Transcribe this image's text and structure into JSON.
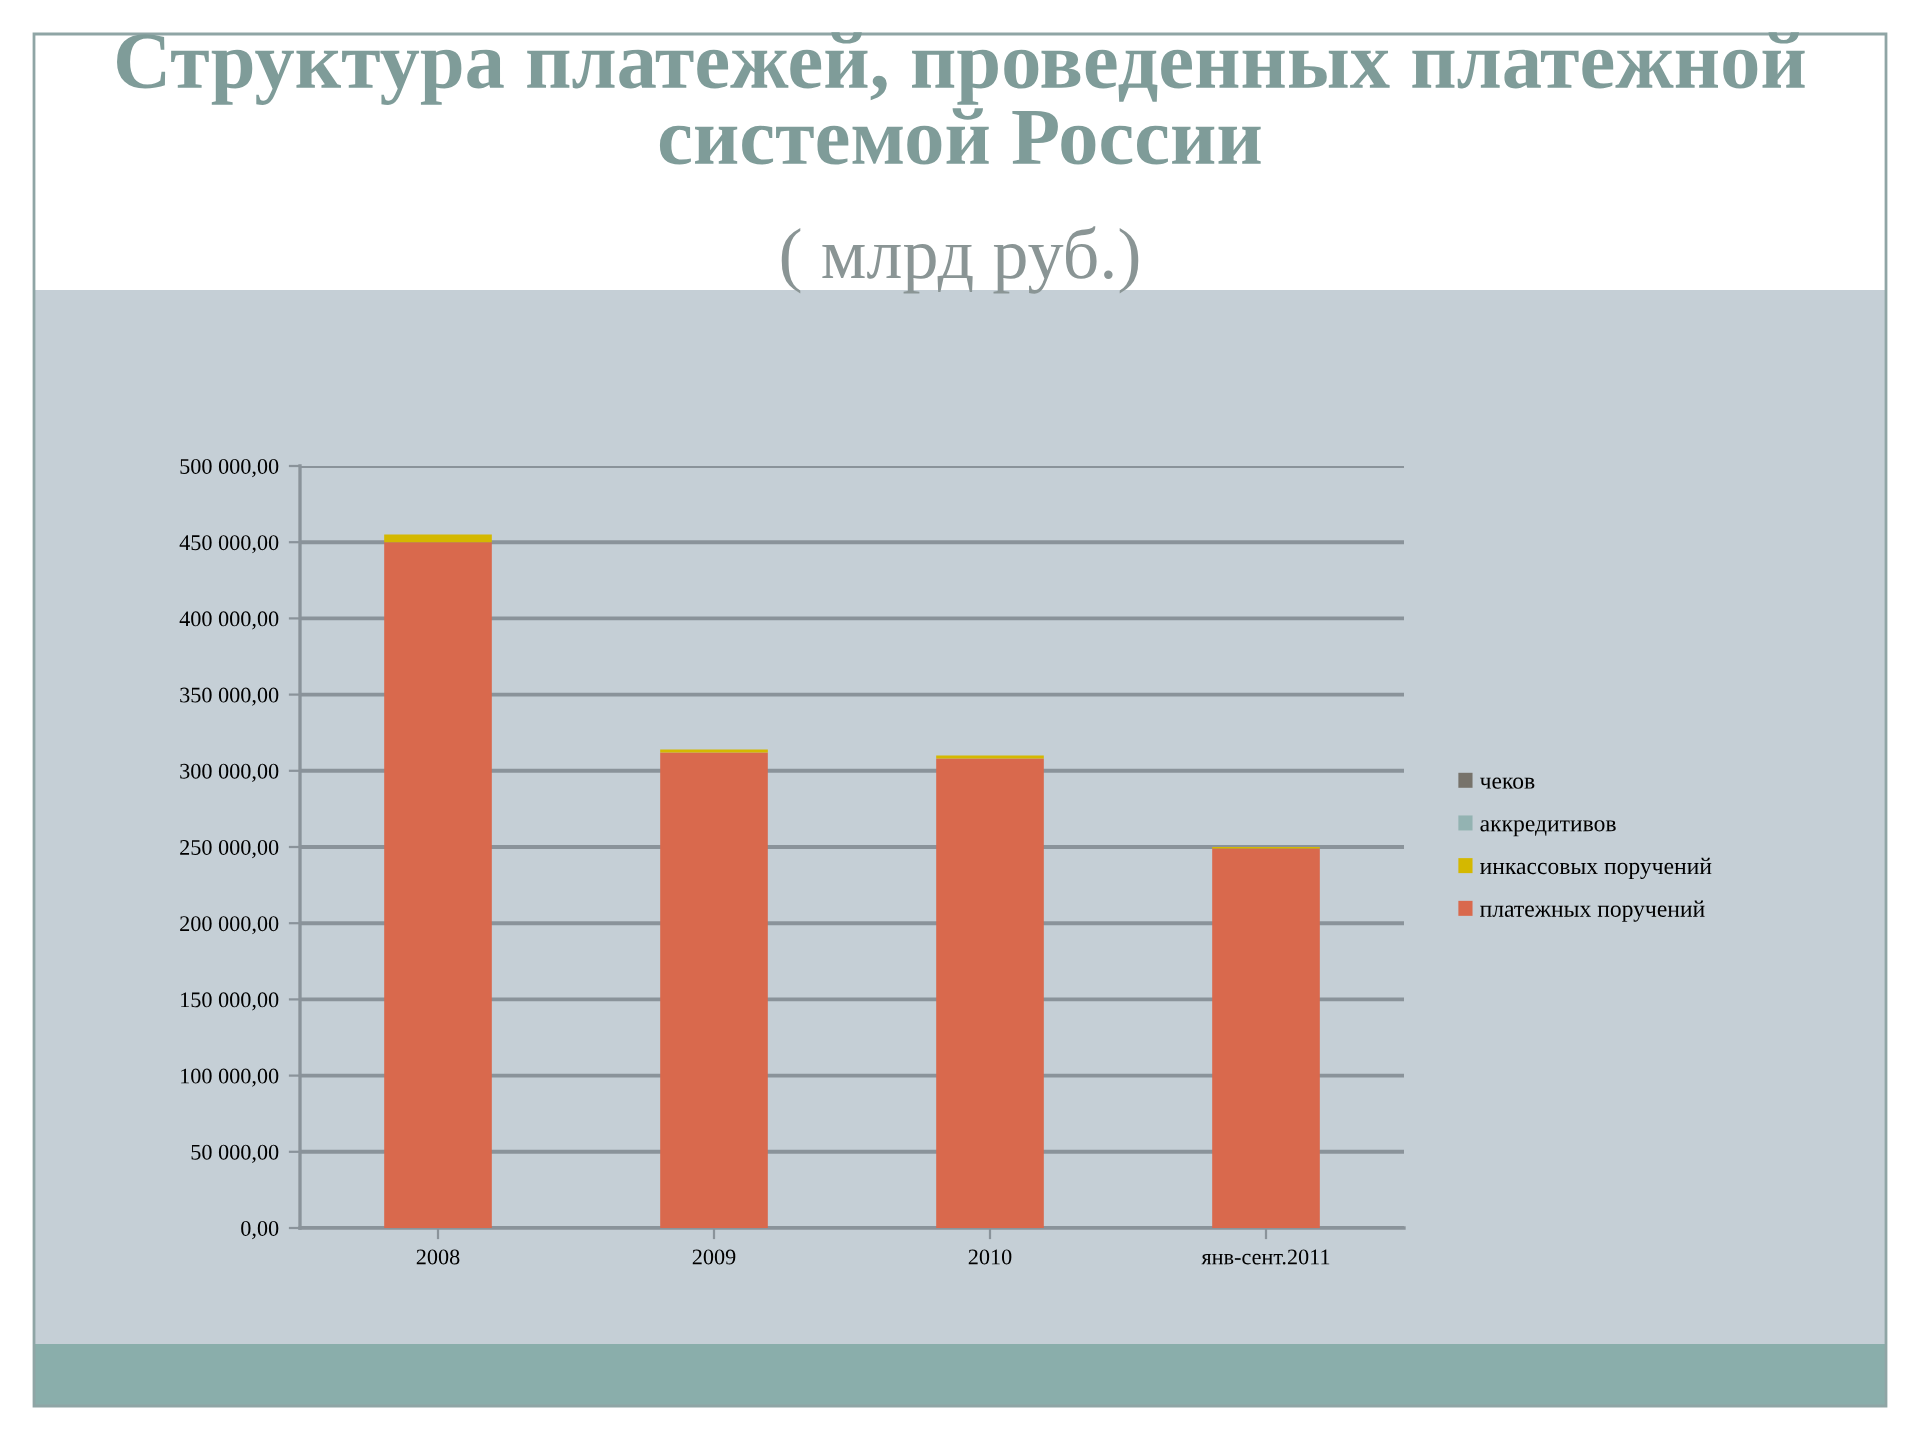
{
  "chart_data": {
    "type": "bar",
    "title": "Структура платежей, проведенных платежной системой России",
    "subtitle": "( млрд руб.)",
    "categories": [
      "2008",
      "2009",
      "2010",
      "янв-сент.2011"
    ],
    "stacked": true,
    "series": [
      {
        "name": "платежных поручений",
        "color": "#d9694d",
        "values": [
          450000,
          312000,
          308000,
          249000
        ]
      },
      {
        "name": "инкассовых поручений",
        "color": "#d4b800",
        "values": [
          5000,
          2000,
          2000,
          1000
        ]
      },
      {
        "name": "аккредитивов",
        "color": "#93b3b2",
        "values": [
          0,
          0,
          0,
          0
        ]
      },
      {
        "name": "чеков",
        "color": "#77736b",
        "values": [
          0,
          0,
          0,
          0
        ]
      }
    ],
    "ylim": [
      0,
      500000
    ],
    "yticks": [
      {
        "value": 0,
        "label": "0,00"
      },
      {
        "value": 50000,
        "label": "50 000,00"
      },
      {
        "value": 100000,
        "label": "100 000,00"
      },
      {
        "value": 150000,
        "label": "150 000,00"
      },
      {
        "value": 200000,
        "label": "200 000,00"
      },
      {
        "value": 250000,
        "label": "250 000,00"
      },
      {
        "value": 300000,
        "label": "300 000,00"
      },
      {
        "value": 350000,
        "label": "350 000,00"
      },
      {
        "value": 400000,
        "label": "400 000,00"
      },
      {
        "value": 450000,
        "label": "450 000,00"
      },
      {
        "value": 500000,
        "label": "500 000,00"
      }
    ],
    "grid": "y",
    "legend": "right"
  }
}
